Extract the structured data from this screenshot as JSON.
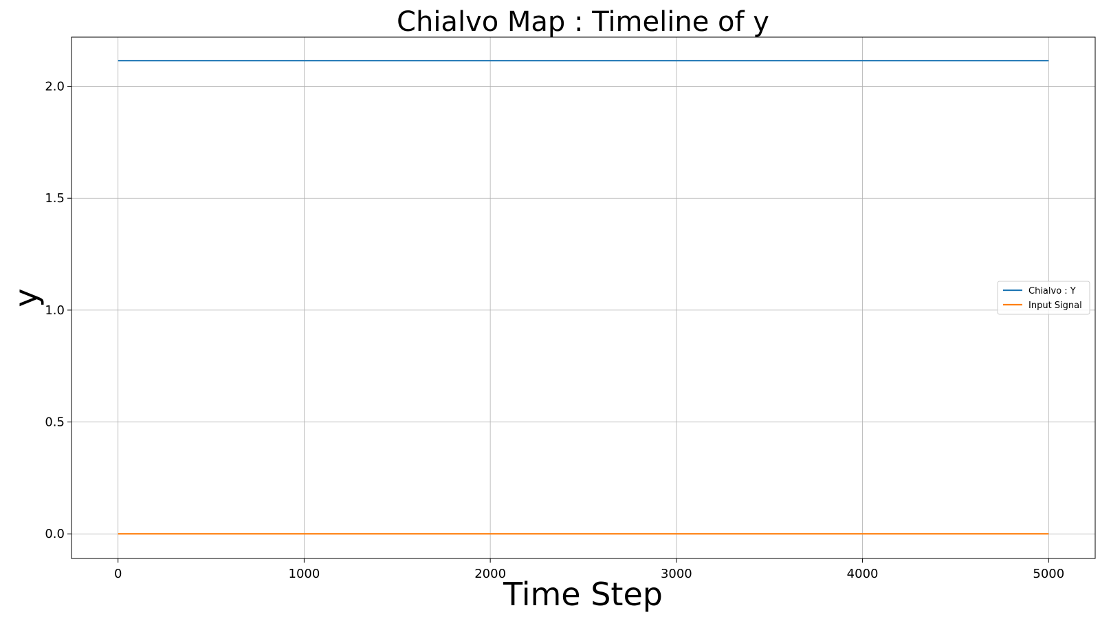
{
  "chart_data": {
    "type": "line",
    "title": "Chialvo Map : Timeline of y",
    "xlabel": "Time Step",
    "ylabel": "y",
    "xlim": [
      -250,
      5250
    ],
    "ylim": [
      -0.11,
      2.22
    ],
    "xticks": [
      0,
      1000,
      2000,
      3000,
      4000,
      5000
    ],
    "xtick_labels": [
      "0",
      "1000",
      "2000",
      "3000",
      "4000",
      "5000"
    ],
    "yticks": [
      0.0,
      0.5,
      1.0,
      1.5,
      2.0
    ],
    "ytick_labels": [
      "0.0",
      "0.5",
      "1.0",
      "1.5",
      "2.0"
    ],
    "grid": true,
    "legend_position": "center-right",
    "series": [
      {
        "name": "Chialvo : Y",
        "color": "#1f77b4",
        "x": [
          0,
          5000
        ],
        "y": [
          2.115,
          2.115
        ]
      },
      {
        "name": "Input Signal",
        "color": "#ff7f0e",
        "x": [
          0,
          5000
        ],
        "y": [
          0.0,
          0.0
        ]
      }
    ]
  }
}
